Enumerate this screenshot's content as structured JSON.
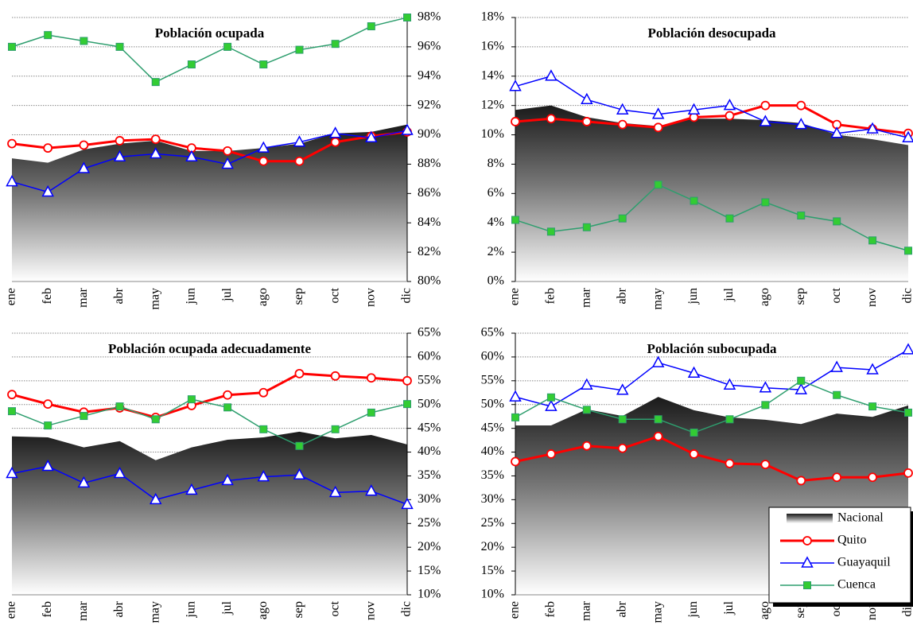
{
  "chart_data": [
    {
      "type": "line",
      "title": "Población ocupada",
      "yaxis_side": "right",
      "grid": true,
      "categories": [
        "ene",
        "feb",
        "mar",
        "abr",
        "may",
        "jun",
        "jul",
        "ago",
        "sep",
        "oct",
        "nov",
        "dic"
      ],
      "ylim": [
        80,
        98
      ],
      "yticks": [
        {
          "value": 80,
          "label": "80%"
        },
        {
          "value": 82,
          "label": "82%"
        },
        {
          "value": 84,
          "label": "84%"
        },
        {
          "value": 86,
          "label": "86%"
        },
        {
          "value": 88,
          "label": "88%"
        },
        {
          "value": 90,
          "label": "90%"
        },
        {
          "value": 92,
          "label": "92%"
        },
        {
          "value": 94,
          "label": "94%"
        },
        {
          "value": 96,
          "label": "96%"
        },
        {
          "value": 98,
          "label": "98%"
        }
      ],
      "series": [
        {
          "kind": "area",
          "color": "#1a1a1a",
          "values": [
            88.4,
            88.1,
            89.0,
            89.4,
            89.6,
            88.9,
            88.9,
            89.1,
            89.4,
            90.1,
            90.2,
            90.7
          ]
        },
        {
          "kind": "line",
          "marker": "circle",
          "color": "#ff0000",
          "values": [
            89.4,
            89.1,
            89.3,
            89.6,
            89.7,
            89.1,
            88.9,
            88.2,
            88.2,
            89.5,
            89.9,
            90.2
          ]
        },
        {
          "kind": "line",
          "marker": "triangle",
          "color": "#0000ff",
          "values": [
            86.8,
            86.1,
            87.7,
            88.5,
            88.7,
            88.5,
            88.0,
            89.1,
            89.5,
            90.1,
            89.8,
            90.3
          ]
        },
        {
          "kind": "line",
          "marker": "square",
          "color": "#2e9e6e",
          "marker_color": "#33cc33",
          "values": [
            96.0,
            96.8,
            96.4,
            96.0,
            93.6,
            94.8,
            96.0,
            94.8,
            95.8,
            96.2,
            97.4,
            98.0
          ]
        }
      ]
    },
    {
      "type": "line",
      "title": "Población desocupada",
      "yaxis_side": "left",
      "grid": true,
      "categories": [
        "ene",
        "feb",
        "mar",
        "abr",
        "may",
        "jun",
        "jul",
        "ago",
        "sep",
        "oct",
        "nov",
        "dic"
      ],
      "ylim": [
        0,
        18
      ],
      "yticks": [
        {
          "value": 0,
          "label": "0%"
        },
        {
          "value": 2,
          "label": "2%"
        },
        {
          "value": 4,
          "label": "4%"
        },
        {
          "value": 6,
          "label": "6%"
        },
        {
          "value": 8,
          "label": "8%"
        },
        {
          "value": 10,
          "label": "10%"
        },
        {
          "value": 12,
          "label": "12%"
        },
        {
          "value": 14,
          "label": "14%"
        },
        {
          "value": 16,
          "label": "16%"
        },
        {
          "value": 18,
          "label": "18%"
        }
      ],
      "series": [
        {
          "kind": "area",
          "color": "#1a1a1a",
          "values": [
            11.7,
            12.0,
            11.2,
            10.8,
            10.6,
            11.1,
            11.1,
            11.0,
            10.8,
            10.0,
            9.7,
            9.3
          ]
        },
        {
          "kind": "line",
          "marker": "circle",
          "color": "#ff0000",
          "values": [
            10.9,
            11.1,
            10.9,
            10.7,
            10.5,
            11.2,
            11.3,
            12.0,
            12.0,
            10.7,
            10.4,
            10.1
          ]
        },
        {
          "kind": "line",
          "marker": "triangle",
          "color": "#0000ff",
          "values": [
            13.3,
            14.0,
            12.4,
            11.7,
            11.4,
            11.7,
            12.0,
            10.9,
            10.7,
            10.1,
            10.4,
            9.8
          ]
        },
        {
          "kind": "line",
          "marker": "square",
          "color": "#2e9e6e",
          "marker_color": "#33cc33",
          "values": [
            4.2,
            3.4,
            3.7,
            4.3,
            6.6,
            5.5,
            4.3,
            5.4,
            4.5,
            4.1,
            2.8,
            2.1
          ]
        }
      ]
    },
    {
      "type": "line",
      "title": "Población ocupada adecuadamente",
      "yaxis_side": "right",
      "grid": true,
      "categories": [
        "ene",
        "feb",
        "mar",
        "abr",
        "may",
        "jun",
        "jul",
        "ago",
        "sep",
        "oct",
        "nov",
        "dic"
      ],
      "ylim": [
        10,
        65
      ],
      "yticks": [
        {
          "value": 10,
          "label": "10%"
        },
        {
          "value": 15,
          "label": "15%"
        },
        {
          "value": 20,
          "label": "20%"
        },
        {
          "value": 25,
          "label": "25%"
        },
        {
          "value": 30,
          "label": "30%"
        },
        {
          "value": 35,
          "label": "35%"
        },
        {
          "value": 40,
          "label": "40%"
        },
        {
          "value": 45,
          "label": "45%"
        },
        {
          "value": 50,
          "label": "50%"
        },
        {
          "value": 55,
          "label": "55%"
        },
        {
          "value": 60,
          "label": "60%"
        },
        {
          "value": 65,
          "label": "65%"
        }
      ],
      "series": [
        {
          "kind": "area",
          "color": "#1a1a1a",
          "values": [
            43.3,
            43.1,
            41.0,
            42.3,
            38.3,
            41.0,
            42.6,
            43.1,
            44.3,
            42.9,
            43.6,
            41.6
          ]
        },
        {
          "kind": "line",
          "marker": "circle",
          "color": "#ff0000",
          "values": [
            52.1,
            50.1,
            48.4,
            49.3,
            47.3,
            49.8,
            52.0,
            52.5,
            56.5,
            56.0,
            55.6,
            55.0
          ]
        },
        {
          "kind": "line",
          "marker": "triangle",
          "color": "#0000ff",
          "values": [
            35.5,
            37.0,
            33.5,
            35.5,
            30.0,
            32.0,
            34.0,
            34.8,
            35.2,
            31.5,
            31.8,
            29.0
          ]
        },
        {
          "kind": "line",
          "marker": "square",
          "color": "#2e9e6e",
          "marker_color": "#33cc33",
          "values": [
            48.6,
            45.6,
            47.6,
            49.6,
            46.9,
            51.1,
            49.4,
            44.8,
            41.3,
            44.8,
            48.3,
            50.1
          ]
        }
      ]
    },
    {
      "type": "line",
      "title": "Población subocupada",
      "yaxis_side": "left",
      "grid": true,
      "legend": "lower right",
      "categories": [
        "ene",
        "feb",
        "mar",
        "abr",
        "may",
        "jun",
        "jul",
        "ago",
        "sep",
        "oct",
        "nov",
        "dic"
      ],
      "ylim": [
        10,
        65
      ],
      "yticks": [
        {
          "value": 10,
          "label": "10%"
        },
        {
          "value": 15,
          "label": "15%"
        },
        {
          "value": 20,
          "label": "20%"
        },
        {
          "value": 25,
          "label": "25%"
        },
        {
          "value": 30,
          "label": "30%"
        },
        {
          "value": 35,
          "label": "35%"
        },
        {
          "value": 40,
          "label": "40%"
        },
        {
          "value": 45,
          "label": "45%"
        },
        {
          "value": 50,
          "label": "50%"
        },
        {
          "value": 55,
          "label": "55%"
        },
        {
          "value": 60,
          "label": "60%"
        },
        {
          "value": 65,
          "label": "65%"
        }
      ],
      "series": [
        {
          "name": "Nacional",
          "kind": "area",
          "color": "#1a1a1a",
          "values": [
            45.6,
            45.6,
            49.0,
            47.6,
            51.6,
            48.8,
            47.3,
            46.8,
            45.9,
            48.1,
            47.4,
            49.8
          ]
        },
        {
          "name": "Quito",
          "kind": "line",
          "marker": "circle",
          "color": "#ff0000",
          "values": [
            38.0,
            39.6,
            41.3,
            40.8,
            43.3,
            39.6,
            37.6,
            37.4,
            34.0,
            34.7,
            34.7,
            35.6
          ]
        },
        {
          "name": "Guayaquil",
          "kind": "line",
          "marker": "triangle",
          "color": "#0000ff",
          "values": [
            51.6,
            49.6,
            54.1,
            53.0,
            58.8,
            56.6,
            54.1,
            53.5,
            53.1,
            57.8,
            57.3,
            61.5
          ]
        },
        {
          "name": "Cuenca",
          "kind": "line",
          "marker": "square",
          "color": "#2e9e6e",
          "marker_color": "#33cc33",
          "values": [
            47.3,
            51.5,
            48.9,
            46.9,
            46.9,
            44.1,
            46.9,
            49.9,
            55.0,
            52.0,
            49.6,
            48.3
          ]
        }
      ]
    }
  ]
}
